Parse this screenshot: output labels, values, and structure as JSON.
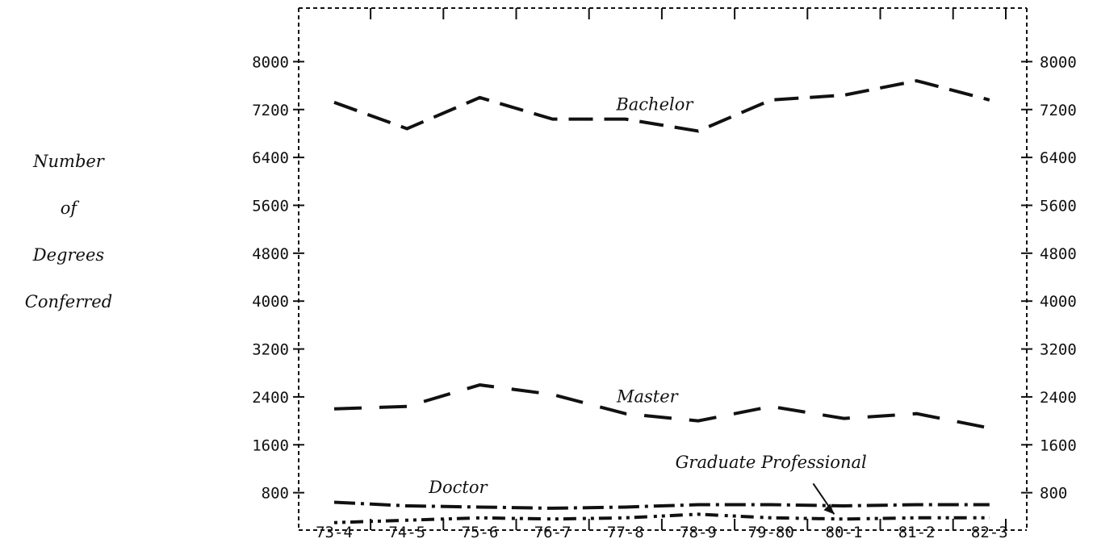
{
  "chart_data": {
    "type": "line",
    "categories": [
      "73-4",
      "74-5",
      "75-6",
      "76-7",
      "77-8",
      "78-9",
      "79-80",
      "80-1",
      "81-2",
      "82-3"
    ],
    "ylim": [
      0,
      8800
    ],
    "yticks": [
      800,
      1600,
      2400,
      3200,
      4000,
      4800,
      5600,
      6400,
      7200,
      8000
    ],
    "ylabel_lines": [
      "Number",
      "of",
      "Degrees",
      "Conferred"
    ],
    "xlabel": "",
    "title": "",
    "grid": false,
    "series": [
      {
        "name": "Bachelor",
        "values": [
          7320,
          6880,
          7400,
          7040,
          7040,
          6840,
          7360,
          7440,
          7680,
          7360
        ],
        "dash": "long"
      },
      {
        "name": "Master",
        "values": [
          2200,
          2240,
          2600,
          2440,
          2120,
          2000,
          2240,
          2040,
          2120,
          1880
        ],
        "dash": "long-gap"
      },
      {
        "name": "Doctor",
        "values": [
          640,
          580,
          560,
          540,
          560,
          600,
          600,
          580,
          600,
          600
        ],
        "dash": "dash-dot"
      },
      {
        "name": "Graduate Professional",
        "values": [
          300,
          340,
          380,
          360,
          380,
          440,
          380,
          360,
          380,
          380
        ],
        "dash": "dot-dash"
      }
    ]
  }
}
